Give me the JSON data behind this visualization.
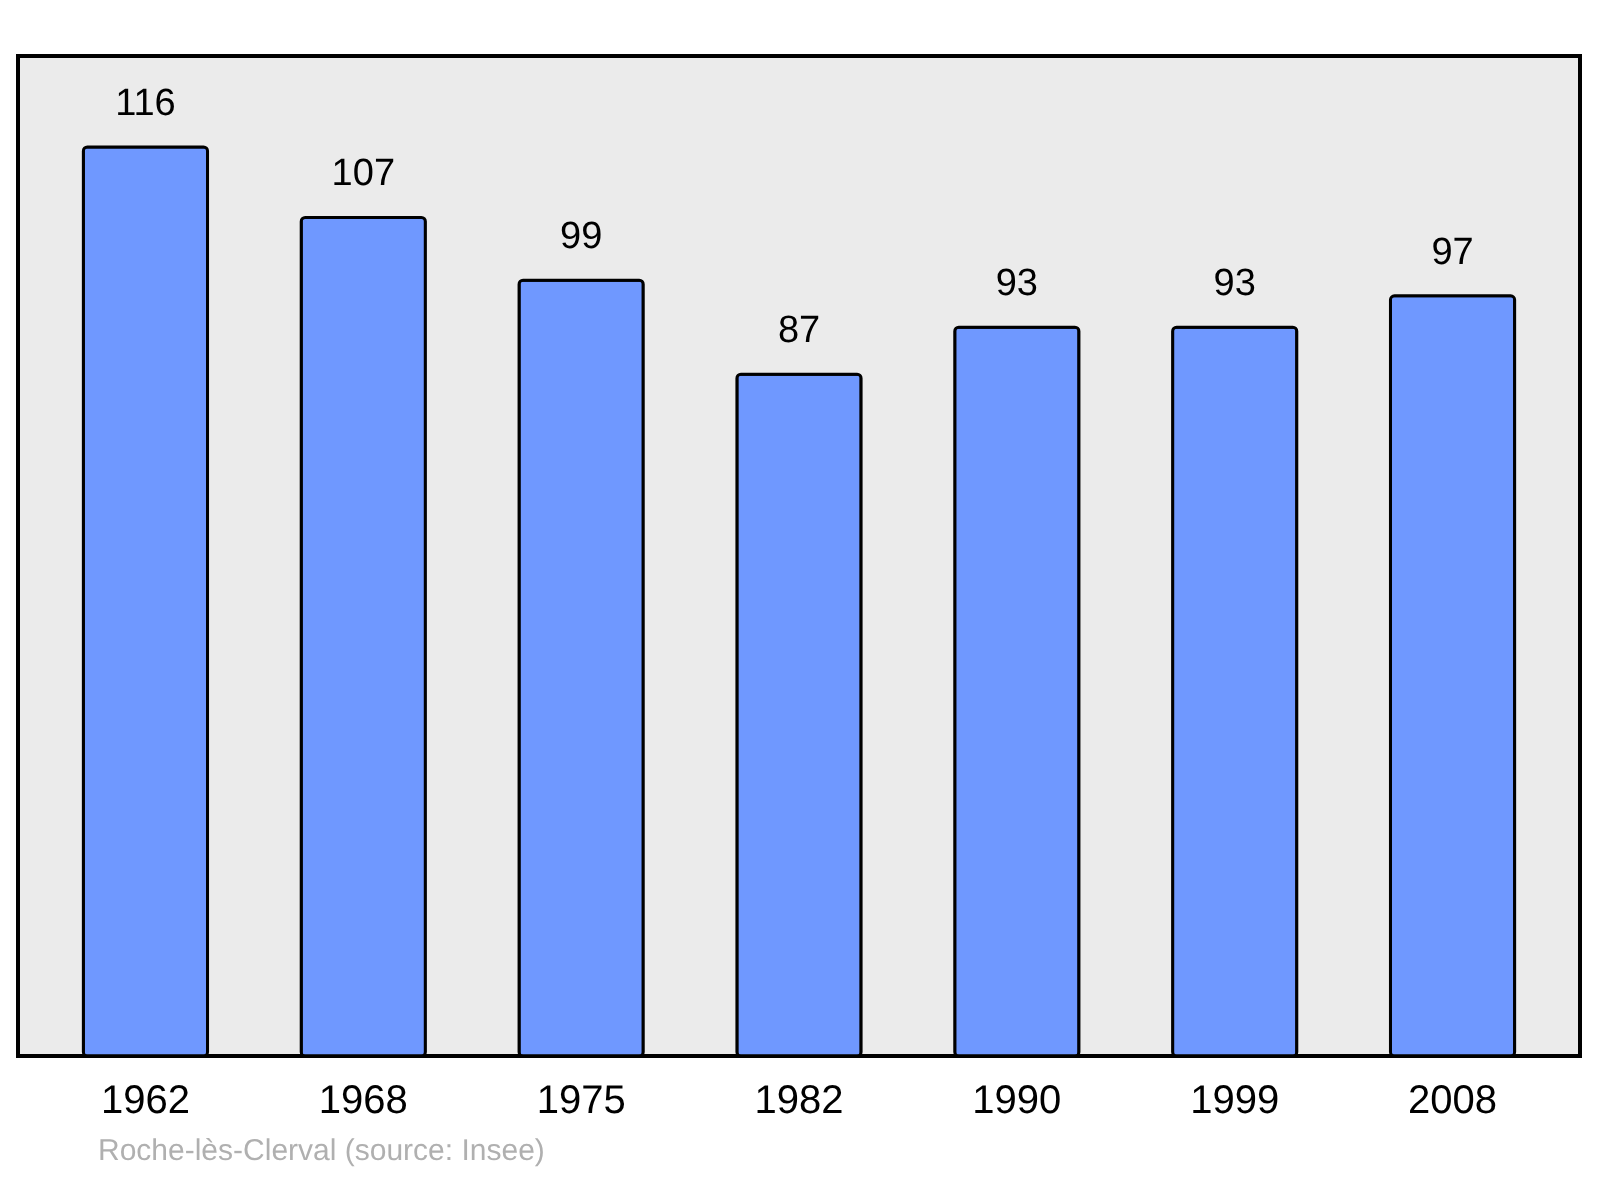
{
  "chart_data": {
    "type": "bar",
    "categories": [
      "1962",
      "1968",
      "1975",
      "1982",
      "1990",
      "1999",
      "2008"
    ],
    "values": [
      116,
      107,
      99,
      87,
      93,
      93,
      97
    ],
    "color": "#6f98ff",
    "data_labels": true,
    "grid": false,
    "tick_labels": "x",
    "annotations": [
      "Roche-lès-Clerval    (source: Insee)"
    ]
  }
}
